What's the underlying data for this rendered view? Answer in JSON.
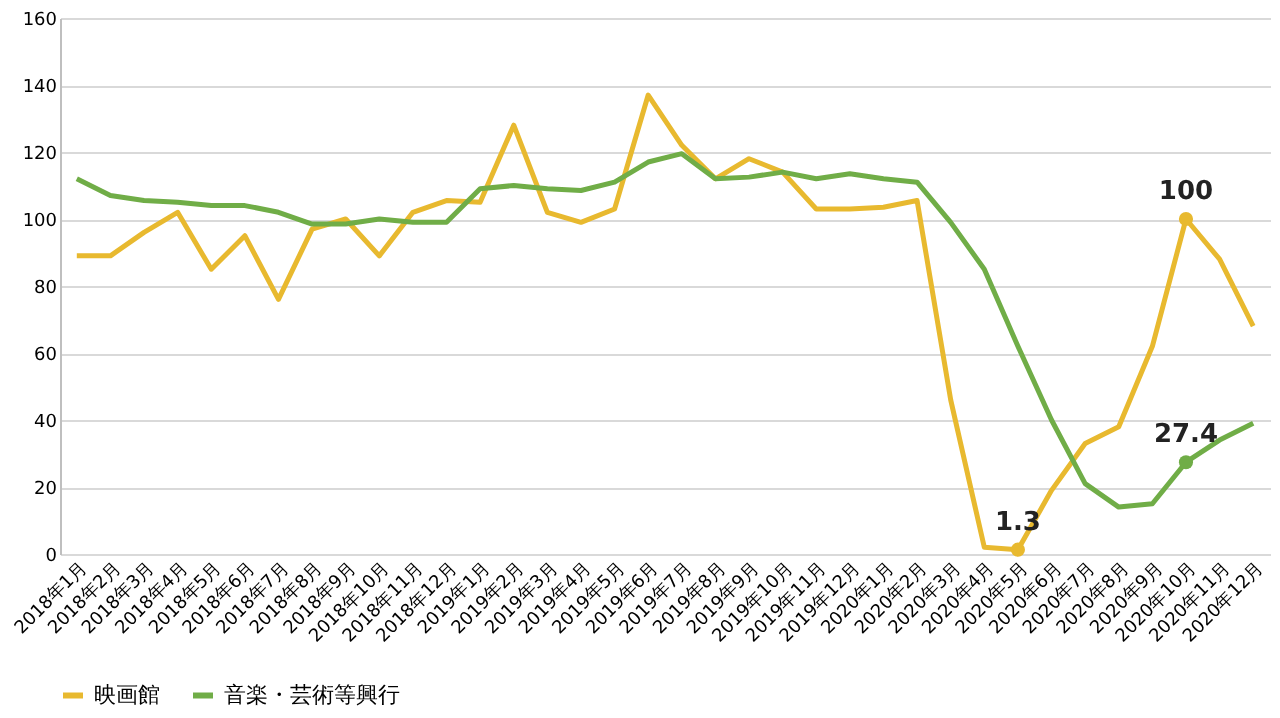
{
  "chart_data": {
    "type": "line",
    "categories": [
      "2018年1月",
      "2018年2月",
      "2018年3月",
      "2018年4月",
      "2018年5月",
      "2018年6月",
      "2018年7月",
      "2018年8月",
      "2018年9月",
      "2018年10月",
      "2018年11月",
      "2018年12月",
      "2019年1月",
      "2019年2月",
      "2019年3月",
      "2019年4月",
      "2019年5月",
      "2019年6月",
      "2019年7月",
      "2019年8月",
      "2019年9月",
      "2019年10月",
      "2019年11月",
      "2019年12月",
      "2020年1月",
      "2020年2月",
      "2020年3月",
      "2020年4月",
      "2020年5月",
      "2020年6月",
      "2020年7月",
      "2020年8月",
      "2020年9月",
      "2020年10月",
      "2020年11月",
      "2020年12月"
    ],
    "series": [
      {
        "name": "映画館",
        "color": "#e8b92f",
        "values": [
          89,
          89,
          96,
          102,
          85,
          95,
          76,
          97,
          100,
          89,
          102,
          105.5,
          105,
          128,
          102,
          99,
          103,
          137,
          122,
          112,
          118,
          114,
          103,
          103,
          103.5,
          105.5,
          46,
          2,
          1.3,
          19,
          33,
          38,
          62,
          100,
          88,
          68
        ],
        "value_labels": [
          null,
          null,
          null,
          null,
          null,
          null,
          null,
          null,
          null,
          null,
          null,
          null,
          null,
          null,
          null,
          null,
          null,
          null,
          null,
          null,
          null,
          null,
          null,
          null,
          null,
          null,
          null,
          null,
          "1.3",
          null,
          null,
          null,
          null,
          "100",
          null,
          null
        ]
      },
      {
        "name": "音楽・芸術等興行",
        "color": "#70ad47",
        "values": [
          112,
          107,
          105.5,
          105,
          104,
          104,
          102,
          98.5,
          98.5,
          100,
          99,
          99,
          109,
          110,
          109,
          108.5,
          111,
          117,
          119.5,
          112,
          112.5,
          114,
          112,
          113.5,
          112,
          111,
          99,
          85,
          62,
          40,
          21,
          14,
          15,
          27.4,
          34,
          39
        ],
        "value_labels": [
          null,
          null,
          null,
          null,
          null,
          null,
          null,
          null,
          null,
          null,
          null,
          null,
          null,
          null,
          null,
          null,
          null,
          null,
          null,
          null,
          null,
          null,
          null,
          null,
          null,
          null,
          null,
          null,
          null,
          null,
          null,
          null,
          null,
          "27.4",
          null,
          null
        ]
      }
    ],
    "ylim": [
      0,
      160
    ],
    "yticks": [
      0,
      20,
      40,
      60,
      80,
      100,
      120,
      140,
      160
    ],
    "grid": "y",
    "legend": "bottom",
    "line_style": "solid"
  }
}
